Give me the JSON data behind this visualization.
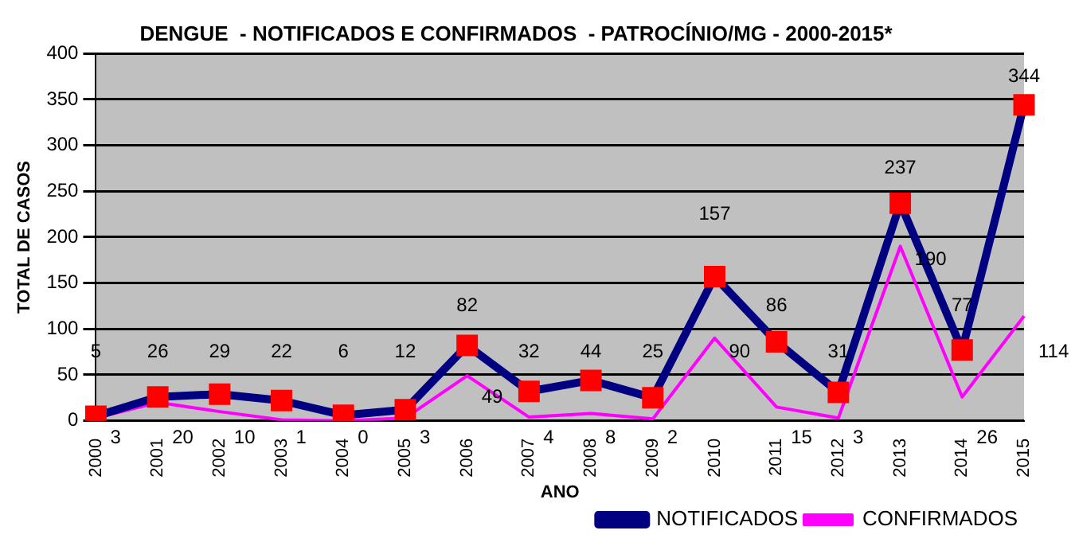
{
  "chart_data": {
    "type": "line",
    "title": "DENGUE  - NOTIFICADOS E CONFIRMADOS  - PATROCÍNIO/MG - 2000-2015*",
    "xlabel": "ANO",
    "ylabel": "TOTAL DE CASOS",
    "categories": [
      "2000",
      "2001",
      "2002",
      "2003",
      "2004",
      "2005",
      "2006",
      "2007",
      "2008",
      "2009",
      "2010",
      "2011",
      "2012",
      "2013",
      "2014",
      "2015"
    ],
    "series": [
      {
        "name": "NOTIFICADOS",
        "color": "#000080",
        "marker": "square",
        "values": [
          5,
          26,
          29,
          22,
          6,
          12,
          82,
          32,
          44,
          25,
          157,
          86,
          31,
          237,
          77,
          344
        ]
      },
      {
        "name": "CONFIRMADOS",
        "color": "#ff00ff",
        "marker": "none",
        "values": [
          3,
          20,
          10,
          1,
          0,
          3,
          49,
          4,
          8,
          2,
          90,
          15,
          3,
          190,
          26,
          114
        ]
      }
    ],
    "ylim": [
      0,
      400
    ],
    "yticks": [
      0,
      50,
      100,
      150,
      200,
      250,
      300,
      350,
      400
    ],
    "grid": "y",
    "legend": "bottom right",
    "data_labels": true
  }
}
